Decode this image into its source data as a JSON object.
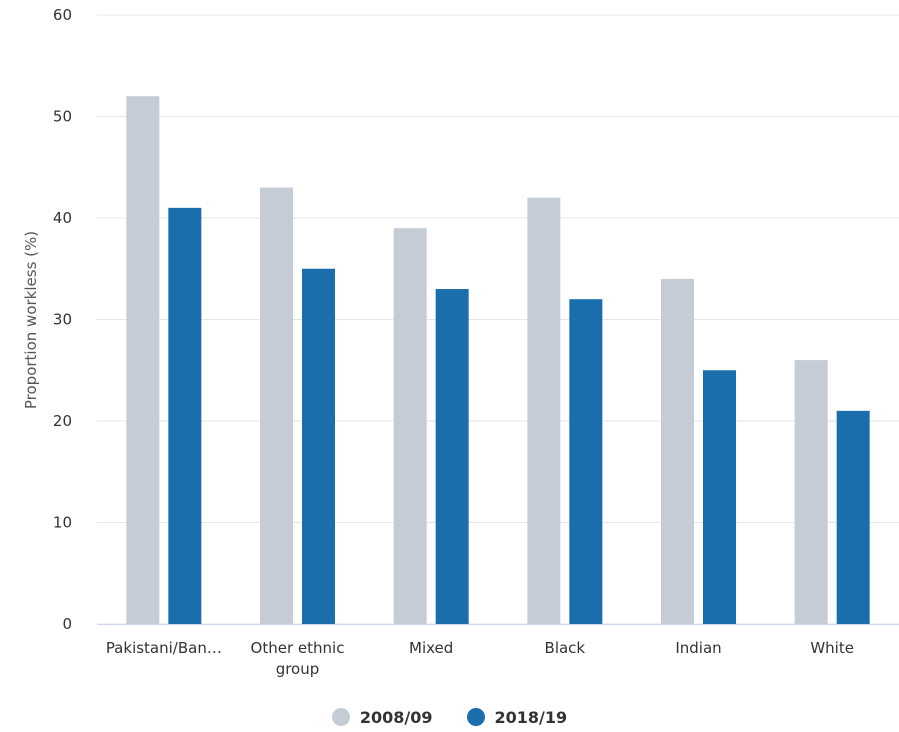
{
  "chart_data": {
    "type": "bar",
    "ylabel": "Proportion workless (%)",
    "xlabel": "",
    "ylim": [
      0,
      60
    ],
    "yticks": [
      0,
      10,
      20,
      30,
      40,
      50,
      60
    ],
    "grid": true,
    "legend_position": "bottom",
    "categories": [
      [
        "Pakistani/Ban…"
      ],
      [
        "Other ethnic",
        "group"
      ],
      [
        "Mixed"
      ],
      [
        "Black"
      ],
      [
        "Indian"
      ],
      [
        "White"
      ]
    ],
    "series": [
      {
        "name": "2008/09",
        "color": "#c5ccd6",
        "values": [
          52,
          43,
          39,
          42,
          34,
          26
        ]
      },
      {
        "name": "2018/19",
        "color": "#1a6eab",
        "values": [
          41,
          35,
          33,
          32,
          25,
          21
        ]
      }
    ]
  }
}
